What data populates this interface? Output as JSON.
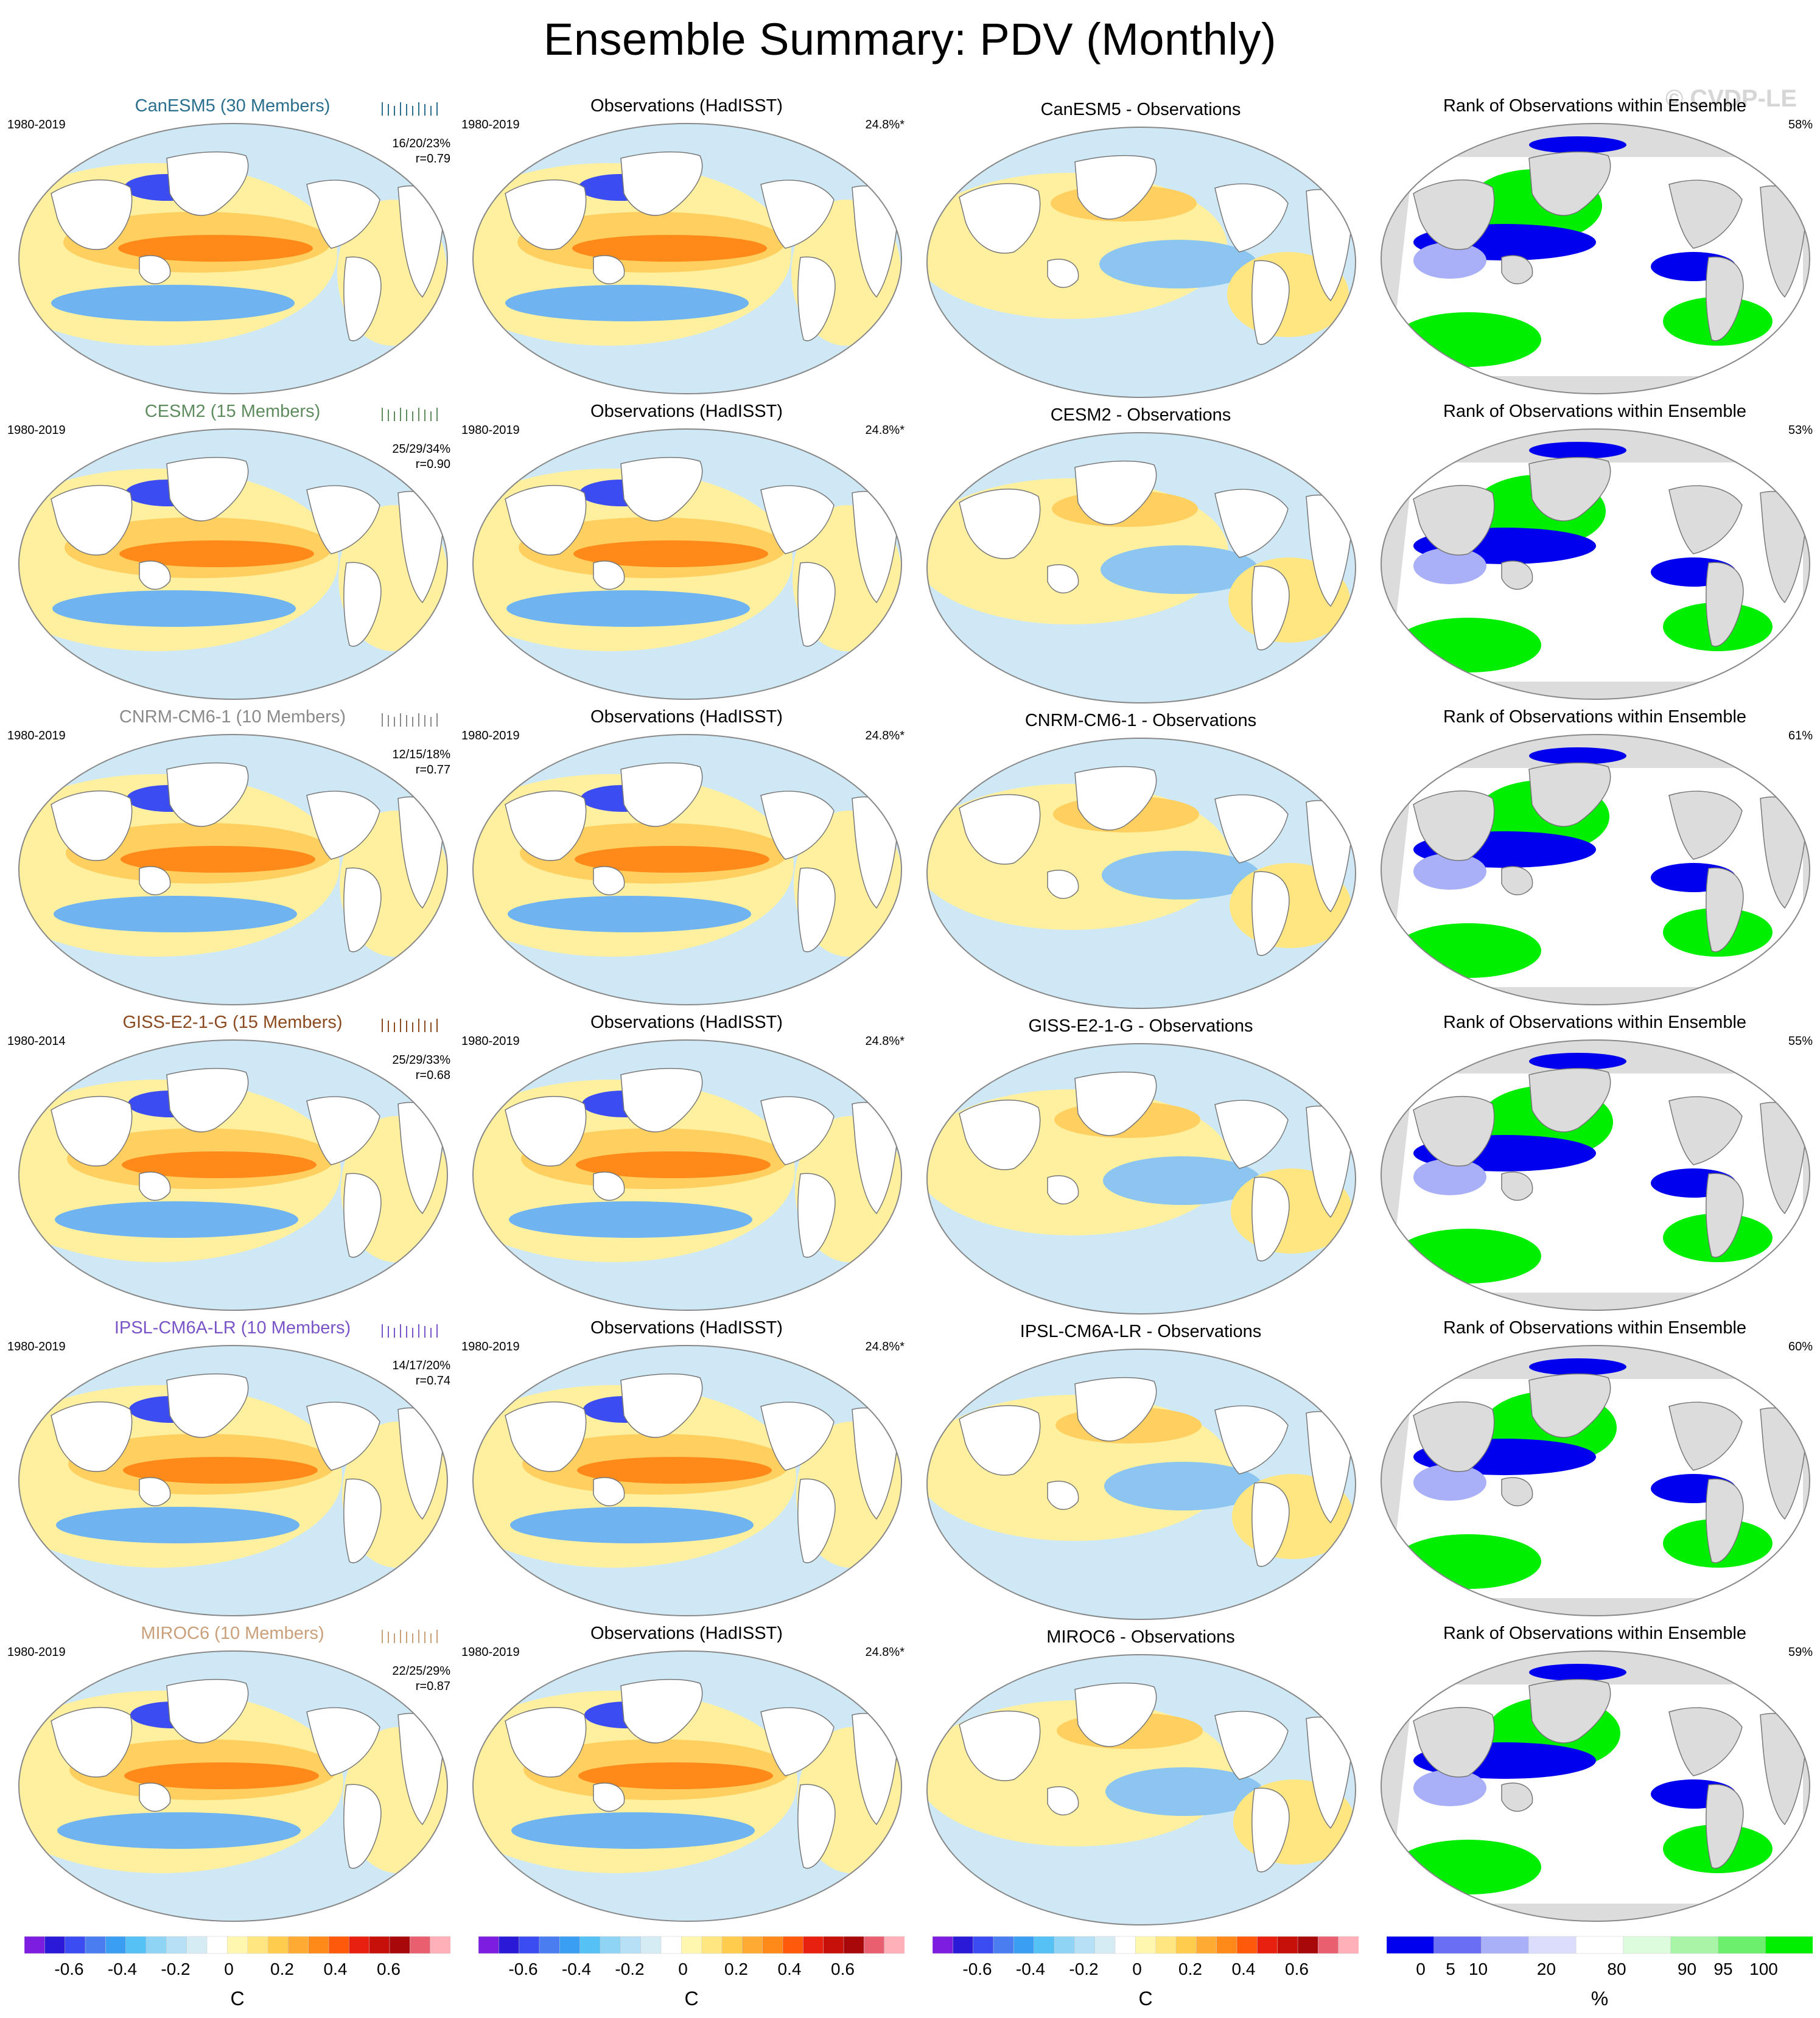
{
  "title": "Ensemble Summary: PDV (Monthly)",
  "watermark": "© CVDP-LE",
  "obs_title": "Observations (HadISST)",
  "obs_pct": "24.8%*",
  "rank_title": "Rank of Observations within Ensemble",
  "rows": [
    {
      "model": "CanESM5 (30 Members)",
      "color": "#2b6f8f",
      "period": "1980-2019",
      "obs_period": "1980-2019",
      "stats": "16/20/23%",
      "corr": "r=0.79",
      "diff_title": "CanESM5 - Observations",
      "rank_pct": "58%"
    },
    {
      "model": "CESM2 (15 Members)",
      "color": "#5f8c5f",
      "period": "1980-2019",
      "obs_period": "1980-2019",
      "stats": "25/29/34%",
      "corr": "r=0.90",
      "diff_title": "CESM2 - Observations",
      "rank_pct": "53%"
    },
    {
      "model": "CNRM-CM6-1 (10 Members)",
      "color": "#8a8a8a",
      "period": "1980-2019",
      "obs_period": "1980-2019",
      "stats": "12/15/18%",
      "corr": "r=0.77",
      "diff_title": "CNRM-CM6-1 - Observations",
      "rank_pct": "61%"
    },
    {
      "model": "GISS-E2-1-G (15 Members)",
      "color": "#8b4a1f",
      "period": "1980-2014",
      "obs_period": "1980-2019",
      "stats": "25/29/33%",
      "corr": "r=0.68",
      "diff_title": "GISS-E2-1-G - Observations",
      "rank_pct": "55%"
    },
    {
      "model": "IPSL-CM6A-LR (10 Members)",
      "color": "#7a55c8",
      "period": "1980-2019",
      "obs_period": "1980-2019",
      "stats": "14/17/20%",
      "corr": "r=0.74",
      "diff_title": "IPSL-CM6A-LR - Observations",
      "rank_pct": "60%"
    },
    {
      "model": "MIROC6 (10 Members)",
      "color": "#c9a07a",
      "period": "1980-2019",
      "obs_period": "1980-2019",
      "stats": "22/25/29%",
      "corr": "r=0.87",
      "diff_title": "MIROC6 - Observations",
      "rank_pct": "59%"
    }
  ],
  "colorbar_sst": {
    "unit": "C",
    "ticks": [
      "-0.6",
      "-0.4",
      "-0.2",
      "0",
      "0.2",
      "0.4",
      "0.6"
    ],
    "colors": [
      "#7b1ee0",
      "#2a1ad8",
      "#3b4cf0",
      "#4a7ef0",
      "#3a9ff2",
      "#55c2f5",
      "#8fd3f5",
      "#b6e0f5",
      "#d6ecf5",
      "#ffffff",
      "#fff6b0",
      "#ffe680",
      "#ffcc4d",
      "#ffaa33",
      "#ff8a1a",
      "#ff5a0a",
      "#e82010",
      "#c8100a",
      "#a8080a",
      "#e86070",
      "#ffb0b8"
    ]
  },
  "colorbar_rank": {
    "unit": "%",
    "ticks": [
      "0",
      "5",
      "10",
      "20",
      "80",
      "90",
      "95",
      "100"
    ],
    "colors": [
      "#0000ee",
      "#6a6ef2",
      "#aab0f8",
      "#dcdcfc",
      "#ffffff",
      "#ddfbdd",
      "#a8f5a8",
      "#6cef6c",
      "#00ee00"
    ]
  }
}
